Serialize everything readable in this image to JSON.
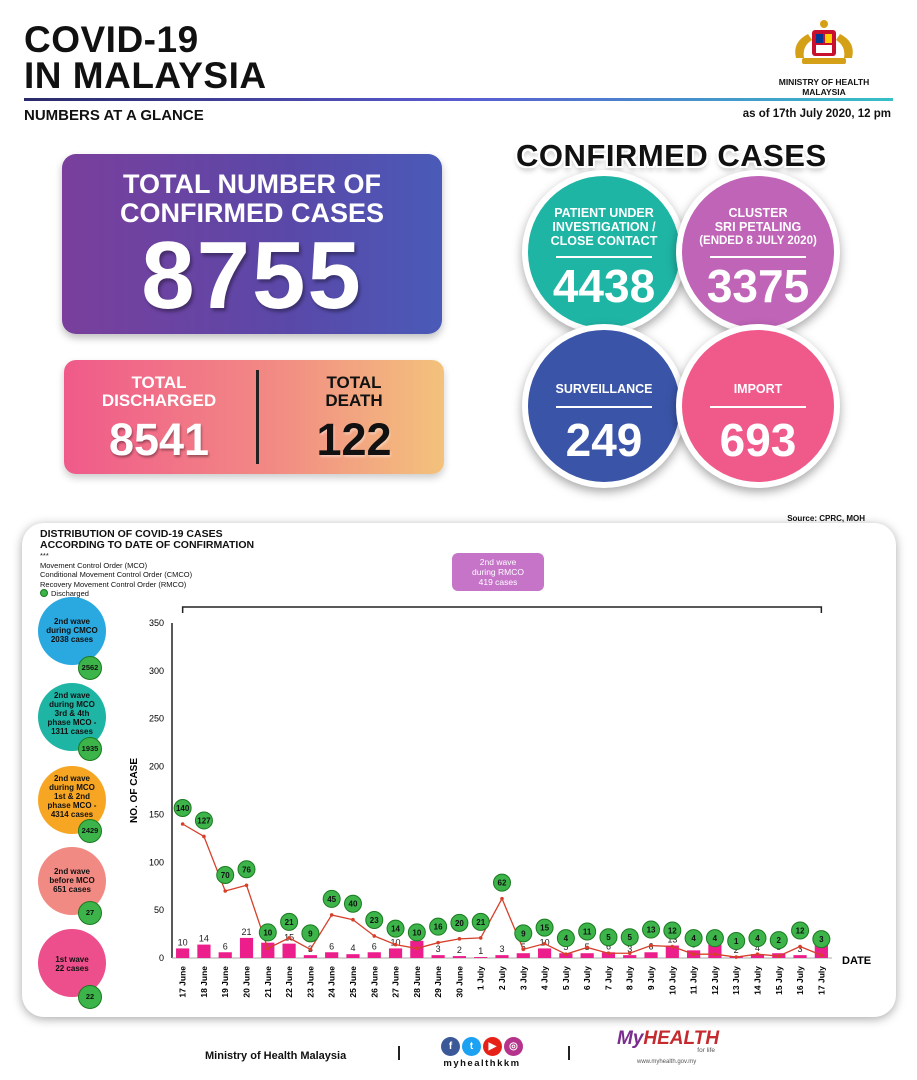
{
  "header": {
    "title_line1": "COVID-19",
    "title_line2": "IN MALAYSIA",
    "ministry_line1": "MINISTRY OF HEALTH",
    "ministry_line2": "MALAYSIA",
    "subheading": "NUMBERS AT A GLANCE",
    "as_of": "as of 17th July 2020, 12 pm"
  },
  "summary": {
    "total_label_line1": "TOTAL NUMBER OF",
    "total_label_line2": "CONFIRMED CASES",
    "total_value": "8755",
    "discharged_label_line1": "TOTAL",
    "discharged_label_line2": "DISCHARGED",
    "discharged_value": "8541",
    "death_label_line1": "TOTAL",
    "death_label_line2": "DEATH",
    "death_value": "122"
  },
  "confirmed_cases": {
    "heading": "CONFIRMED CASES",
    "puic": {
      "line1": "PATIENT UNDER",
      "line2": "INVESTIGATION /",
      "line3": "CLOSE CONTACT",
      "value": "4438",
      "color": "#1fb5a5"
    },
    "cluster": {
      "line1": "CLUSTER",
      "line2": "SRI PETALING",
      "line3": "(ENDED 8 JULY 2020)",
      "value": "3375",
      "color": "#c064b8"
    },
    "surveillance": {
      "label": "SURVEILLANCE",
      "value": "249",
      "color": "#3a55a8"
    },
    "import": {
      "label": "IMPORT",
      "value": "693",
      "color": "#ef5a8a"
    }
  },
  "source": "Source: CPRC, MOH",
  "chart_section": {
    "title_line1": "DISTRIBUTION OF COVID-19 CASES",
    "title_line2": "ACCORDING TO DATE OF CONFIRMATION",
    "asterisks": "***",
    "legend_mco": "Movement Control Order (MCO)",
    "legend_cmco": "Conditional Movement Control Order (CMCO)",
    "legend_rmco": "Recovery Movement Control Order (RMCO)",
    "legend_discharged": "Discharged",
    "rmco_line1": "2nd wave",
    "rmco_line2": "during RMCO",
    "rmco_line3": "419 cases",
    "waves": [
      {
        "line1": "2nd wave",
        "line2": "during CMCO",
        "line3": "2038 cases",
        "line4": "",
        "line5": "",
        "discharged": "2562",
        "color": "#2aa8e0"
      },
      {
        "line1": "2nd wave",
        "line2": "during MCO",
        "line3": "3rd & 4th",
        "line4": "phase MCO -",
        "line5": "1311 cases",
        "discharged": "1935",
        "color": "#1fb5a5"
      },
      {
        "line1": "2nd wave",
        "line2": "during MCO",
        "line3": "1st & 2nd",
        "line4": "phase MCO -",
        "line5": "4314 cases",
        "discharged": "2429",
        "color": "#f6a623"
      },
      {
        "line1": "2nd wave",
        "line2": "before MCO",
        "line3": "651 cases",
        "line4": "",
        "line5": "",
        "discharged": "27",
        "color": "#f28a84"
      },
      {
        "line1": "1st wave",
        "line2": "22 cases",
        "line3": "",
        "line4": "",
        "line5": "",
        "discharged": "22",
        "color": "#ec4f8c"
      }
    ]
  },
  "chart_data": {
    "type": "bar",
    "title": "DISTRIBUTION OF COVID-19 CASES ACCORDING TO DATE OF CONFIRMATION",
    "xlabel": "DATE",
    "ylabel": "NO. OF CASE",
    "ylim": [
      0,
      350
    ],
    "yticks": [
      0,
      50,
      100,
      150,
      200,
      250,
      300,
      350
    ],
    "categories": [
      "17 June",
      "18 June",
      "19 June",
      "20 June",
      "21 June",
      "22 June",
      "23 June",
      "24 June",
      "25 June",
      "26 June",
      "27 June",
      "28 June",
      "29 June",
      "30 June",
      "1 July",
      "2 July",
      "3 July",
      "4 July",
      "5 July",
      "6 July",
      "7 July",
      "8 July",
      "9 July",
      "10 July",
      "11 July",
      "12 July",
      "13 July",
      "14 July",
      "15 July",
      "16 July",
      "17 July"
    ],
    "series": [
      {
        "name": "",
        "values": [
          10,
          14,
          6,
          21,
          16,
          15,
          3,
          6,
          4,
          6,
          10,
          18,
          3,
          2,
          1,
          3,
          5,
          10,
          5,
          5,
          6,
          3,
          6,
          13,
          8,
          14,
          2,
          4,
          5,
          3,
          18
        ],
        "color": "#ec1e8c"
      },
      {
        "name": "Discharged",
        "values": [
          140,
          127,
          70,
          76,
          10,
          21,
          9,
          45,
          40,
          23,
          14,
          10,
          16,
          20,
          21,
          62,
          9,
          15,
          4,
          11,
          5,
          5,
          13,
          12,
          4,
          4,
          1,
          4,
          2,
          12,
          3
        ],
        "color": "#3cb44a",
        "line_color": "#d6402b"
      }
    ],
    "rmco_bracket": [
      "17 June",
      "17 July"
    ]
  },
  "footer": {
    "ministry": "Ministry of Health Malaysia",
    "handle": "myhealthkkm",
    "logo_text_a": "My",
    "logo_text_b": "HEALTH",
    "logo_sub": "for life",
    "logo_url": "www.myhealth.gov.my",
    "icons": [
      "facebook-icon",
      "twitter-icon",
      "youtube-icon",
      "instagram-icon"
    ]
  }
}
